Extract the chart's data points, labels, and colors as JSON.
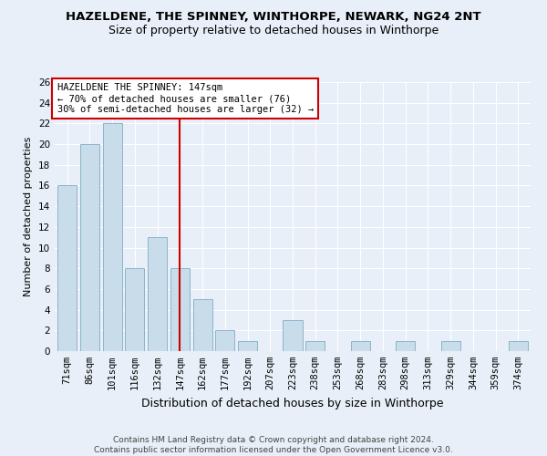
{
  "title": "HAZELDENE, THE SPINNEY, WINTHORPE, NEWARK, NG24 2NT",
  "subtitle": "Size of property relative to detached houses in Winthorpe",
  "xlabel": "Distribution of detached houses by size in Winthorpe",
  "ylabel": "Number of detached properties",
  "categories": [
    "71sqm",
    "86sqm",
    "101sqm",
    "116sqm",
    "132sqm",
    "147sqm",
    "162sqm",
    "177sqm",
    "192sqm",
    "207sqm",
    "223sqm",
    "238sqm",
    "253sqm",
    "268sqm",
    "283sqm",
    "298sqm",
    "313sqm",
    "329sqm",
    "344sqm",
    "359sqm",
    "374sqm"
  ],
  "values": [
    16,
    20,
    22,
    8,
    11,
    8,
    5,
    2,
    1,
    0,
    3,
    1,
    0,
    1,
    0,
    1,
    0,
    1,
    0,
    0,
    1
  ],
  "bar_color": "#c9dcea",
  "bar_edge_color": "#8ab4cc",
  "highlight_index": 5,
  "highlight_line_color": "#cc0000",
  "annotation_text": "HAZELDENE THE SPINNEY: 147sqm\n← 70% of detached houses are smaller (76)\n30% of semi-detached houses are larger (32) →",
  "annotation_box_color": "#ffffff",
  "annotation_box_edge_color": "#cc0000",
  "ylim": [
    0,
    26
  ],
  "yticks": [
    0,
    2,
    4,
    6,
    8,
    10,
    12,
    14,
    16,
    18,
    20,
    22,
    24,
    26
  ],
  "background_color": "#e8eff8",
  "grid_color": "#ffffff",
  "footer_text": "Contains HM Land Registry data © Crown copyright and database right 2024.\nContains public sector information licensed under the Open Government Licence v3.0.",
  "title_fontsize": 9.5,
  "subtitle_fontsize": 9,
  "xlabel_fontsize": 9,
  "ylabel_fontsize": 8,
  "tick_fontsize": 7.5,
  "annotation_fontsize": 7.5,
  "footer_fontsize": 6.5
}
